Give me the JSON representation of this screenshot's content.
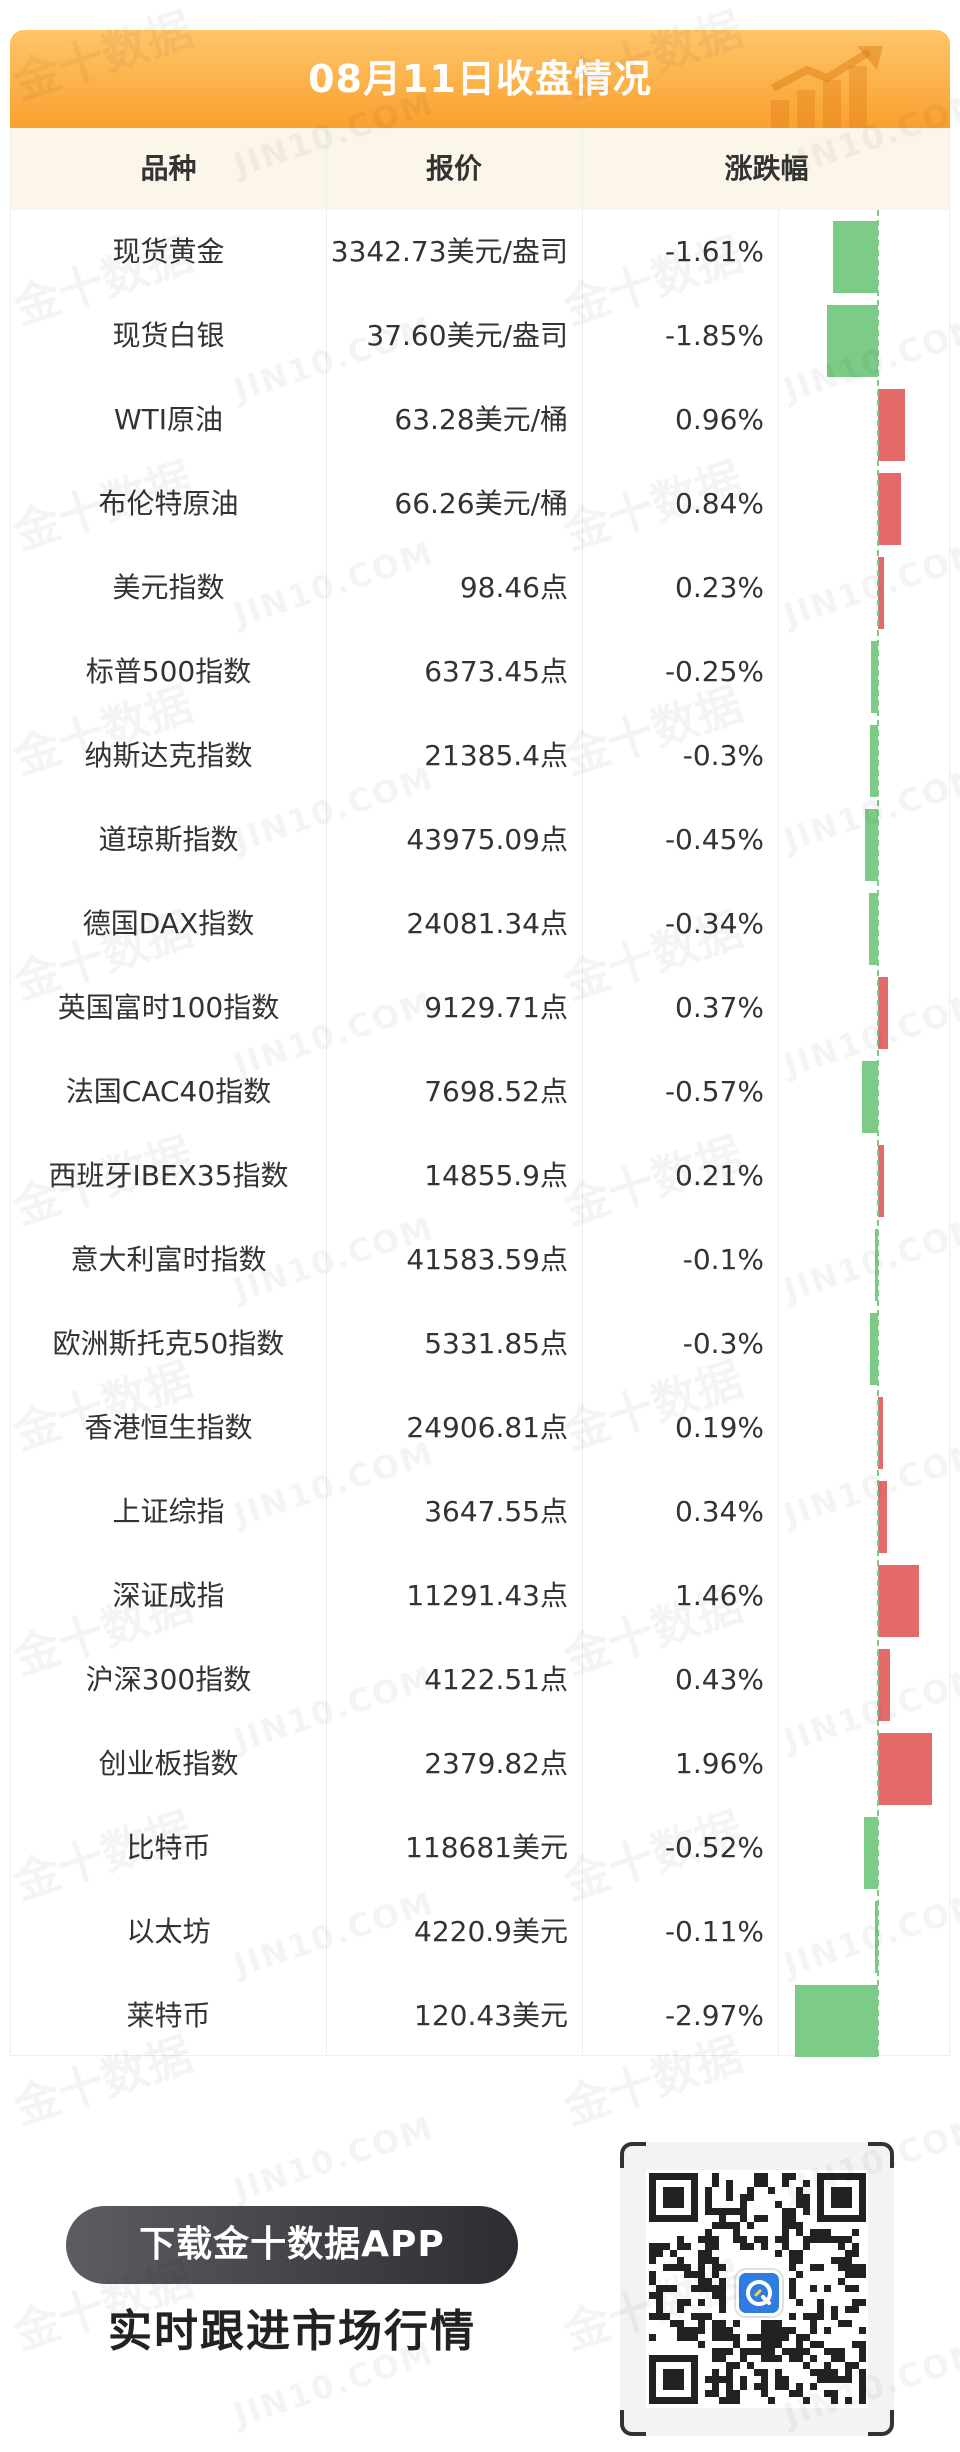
{
  "header": {
    "title": "08月11日收盘情况"
  },
  "table": {
    "columns": {
      "name": "品种",
      "price": "报价",
      "change": "涨跌幅"
    },
    "rows": [
      {
        "name": "现货黄金",
        "price": "3342.73美元/盎司",
        "change": "-1.61%",
        "pct": -1.61
      },
      {
        "name": "现货白银",
        "price": "37.60美元/盎司",
        "change": "-1.85%",
        "pct": -1.85
      },
      {
        "name": "WTI原油",
        "price": "63.28美元/桶",
        "change": "0.96%",
        "pct": 0.96
      },
      {
        "name": "布伦特原油",
        "price": "66.26美元/桶",
        "change": "0.84%",
        "pct": 0.84
      },
      {
        "name": "美元指数",
        "price": "98.46点",
        "change": "0.23%",
        "pct": 0.23
      },
      {
        "name": "标普500指数",
        "price": "6373.45点",
        "change": "-0.25%",
        "pct": -0.25
      },
      {
        "name": "纳斯达克指数",
        "price": "21385.4点",
        "change": "-0.3%",
        "pct": -0.3
      },
      {
        "name": "道琼斯指数",
        "price": "43975.09点",
        "change": "-0.45%",
        "pct": -0.45
      },
      {
        "name": "德国DAX指数",
        "price": "24081.34点",
        "change": "-0.34%",
        "pct": -0.34
      },
      {
        "name": "英国富时100指数",
        "price": "9129.71点",
        "change": "0.37%",
        "pct": 0.37
      },
      {
        "name": "法国CAC40指数",
        "price": "7698.52点",
        "change": "-0.57%",
        "pct": -0.57
      },
      {
        "name": "西班牙IBEX35指数",
        "price": "14855.9点",
        "change": "0.21%",
        "pct": 0.21
      },
      {
        "name": "意大利富时指数",
        "price": "41583.59点",
        "change": "-0.1%",
        "pct": -0.1
      },
      {
        "name": "欧洲斯托克50指数",
        "price": "5331.85点",
        "change": "-0.3%",
        "pct": -0.3
      },
      {
        "name": "香港恒生指数",
        "price": "24906.81点",
        "change": "0.19%",
        "pct": 0.19
      },
      {
        "name": "上证综指",
        "price": "3647.55点",
        "change": "0.34%",
        "pct": 0.34
      },
      {
        "name": "深证成指",
        "price": "11291.43点",
        "change": "1.46%",
        "pct": 1.46
      },
      {
        "name": "沪深300指数",
        "price": "4122.51点",
        "change": "0.43%",
        "pct": 0.43
      },
      {
        "name": "创业板指数",
        "price": "2379.82点",
        "change": "1.96%",
        "pct": 1.96
      },
      {
        "name": "比特币",
        "price": "118681美元",
        "change": "-0.52%",
        "pct": -0.52
      },
      {
        "name": "以太坊",
        "price": "4220.9美元",
        "change": "-0.11%",
        "pct": -0.11
      },
      {
        "name": "莱特币",
        "price": "120.43美元",
        "change": "-2.97%",
        "pct": -2.97
      }
    ]
  },
  "colors": {
    "up": "#e46a6a",
    "down": "#7ccb87",
    "header_top": "#ffc56a",
    "header_bottom": "#f9a12f"
  },
  "promo": {
    "button_label": "下载金十数据APP",
    "tagline": "实时跟进市场行情"
  },
  "watermark": {
    "cn": "金十数据",
    "en": "JIN10.COM"
  }
}
